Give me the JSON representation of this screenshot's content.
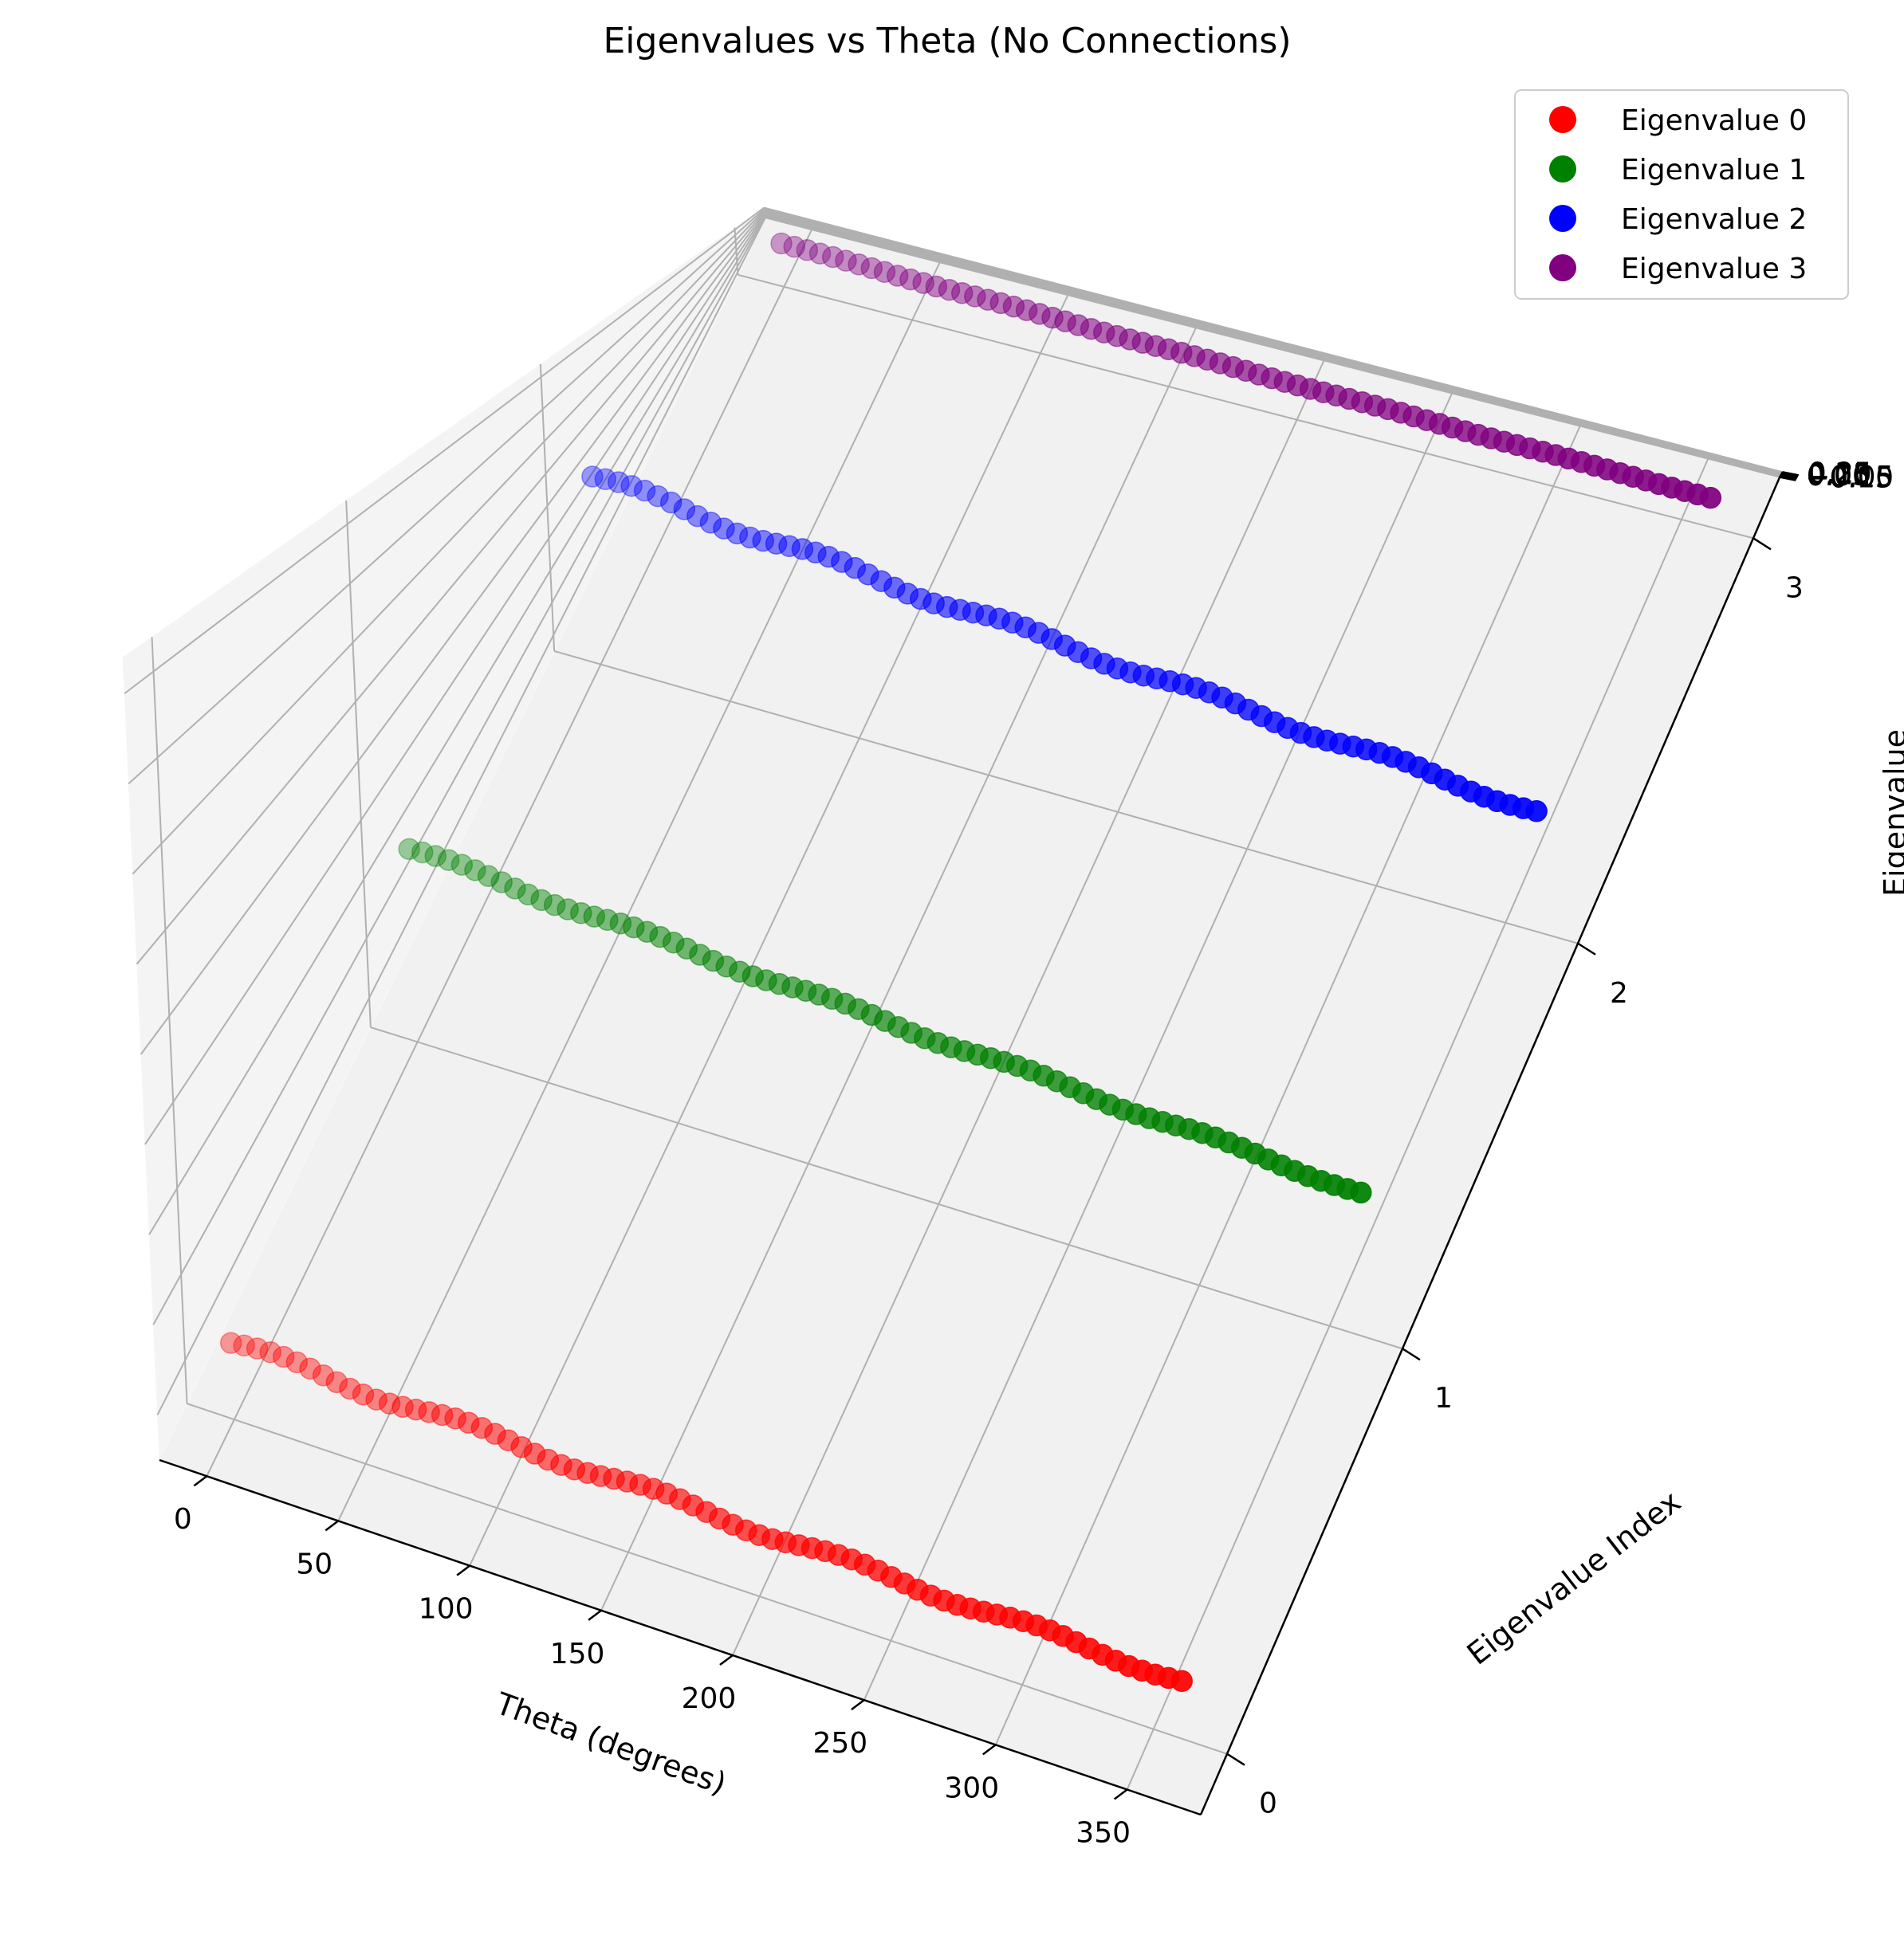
{
  "chart_data": {
    "type": "scatter",
    "title": "Eigenvalues vs Theta (No Connections)",
    "xlabel": "Theta (degrees)",
    "ylabel": "Eigenvalue Index",
    "zlabel": "Eigenvalue",
    "xlim": [
      -18,
      378
    ],
    "ylim": [
      -0.15,
      3.15
    ],
    "zlim": [
      -0.175,
      0.27
    ],
    "xticks": [
      0,
      50,
      100,
      150,
      200,
      250,
      300,
      350
    ],
    "yticks": [
      0,
      1,
      2,
      3
    ],
    "zticks": [
      -0.15,
      -0.1,
      -0.05,
      0.0,
      0.05,
      0.1,
      0.15,
      0.2,
      0.25
    ],
    "xtick_labels": [
      "0",
      "50",
      "100",
      "150",
      "200",
      "250",
      "300",
      "350"
    ],
    "ytick_labels": [
      "0",
      "1",
      "2",
      "3"
    ],
    "ztick_labels": [
      "−0.15",
      "−0.10",
      "−0.05",
      "0.00",
      "0.05",
      "0.10",
      "0.15",
      "0.20",
      "0.25"
    ],
    "grid": true,
    "legend_position": "top-right",
    "x": [
      0,
      5,
      10,
      15,
      20,
      25,
      30,
      35,
      40,
      45,
      50,
      55,
      60,
      65,
      70,
      75,
      80,
      85,
      90,
      95,
      100,
      105,
      110,
      115,
      120,
      125,
      130,
      135,
      140,
      145,
      150,
      155,
      160,
      165,
      170,
      175,
      180,
      185,
      190,
      195,
      200,
      205,
      210,
      215,
      220,
      225,
      230,
      235,
      240,
      245,
      250,
      255,
      260,
      265,
      270,
      275,
      280,
      285,
      290,
      295,
      300,
      305,
      310,
      315,
      320,
      325,
      330,
      335,
      340,
      345,
      350,
      355,
      360
    ],
    "series": [
      {
        "name": "Eigenvalue 0",
        "index": 0,
        "color": "#ff0000",
        "start": -0.13,
        "end": -0.13,
        "wobble": 0.003
      },
      {
        "name": "Eigenvalue 1",
        "index": 1,
        "color": "#008000",
        "start": -0.01,
        "end": -0.012,
        "wobble": 0.003
      },
      {
        "name": "Eigenvalue 2",
        "index": 2,
        "color": "#0000ff",
        "start": 0.12,
        "end": 0.078,
        "wobble": 0.008
      },
      {
        "name": "Eigenvalue 3",
        "index": 3,
        "color": "#800080",
        "start": 0.24,
        "end": 0.216,
        "wobble": 0.006
      }
    ]
  }
}
